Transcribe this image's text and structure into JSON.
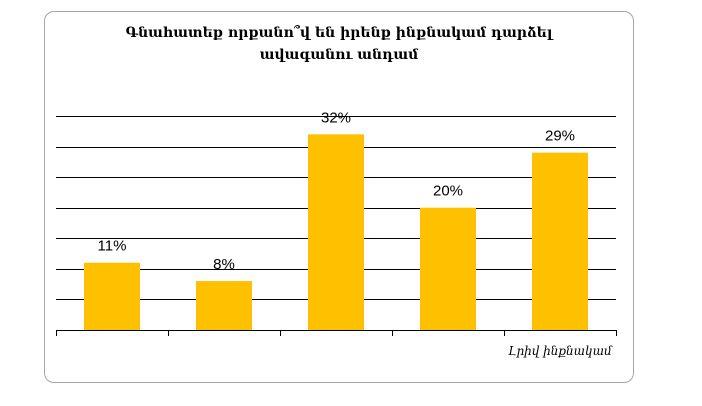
{
  "chart_data": {
    "type": "bar",
    "title_lines": [
      "Գնահատեք որքանո՞վ են իրենք ինքնակամ դարձել",
      "ավագանու անդամ"
    ],
    "categories": [
      "",
      "",
      "",
      "",
      "Լրիվ  ինքնակամ"
    ],
    "values": [
      11,
      8,
      32,
      20,
      29
    ],
    "value_labels": [
      "11%",
      "8%",
      "32%",
      "20%",
      "29%"
    ],
    "unit": "%",
    "ylim": [
      0,
      35
    ],
    "grid_step": 5,
    "grid": true,
    "legend": "none",
    "bar_color": "#FFC000"
  }
}
